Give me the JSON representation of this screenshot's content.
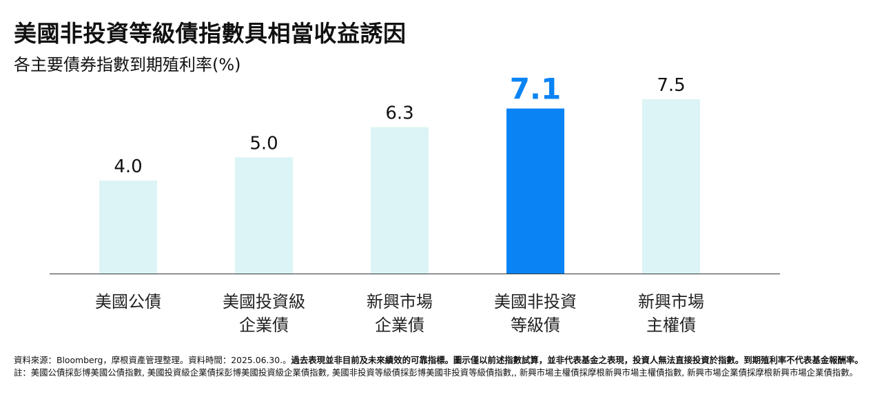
{
  "title": "美國非投資等級債指數具相當收益誘因",
  "subtitle": "各主要債券指數到期殖利率(%)",
  "colors": {
    "highlight_bar": "#0a84f5",
    "normal_bar": "#dcf4f5",
    "highlight_label": "#0a84f5",
    "normal_label": "#111111",
    "axis": "#333333"
  },
  "chart_data": {
    "type": "bar",
    "title": "美國非投資等級債指數具相當收益誘因",
    "subtitle": "各主要債券指數到期殖利率(%)",
    "categories": [
      [
        "美國公債"
      ],
      [
        "美國投資級",
        "企業債"
      ],
      [
        "新興市場",
        "企業債"
      ],
      [
        "美國非投資",
        "等級債"
      ],
      [
        "新興市場",
        "主權債"
      ]
    ],
    "values": [
      4.0,
      5.0,
      6.3,
      7.1,
      7.5
    ],
    "value_labels": [
      "4.0",
      "5.0",
      "6.3",
      "7.1",
      "7.5"
    ],
    "highlight_index": 3,
    "ylim": [
      0,
      7.5
    ],
    "grid": false,
    "legend": "none"
  },
  "footnote": {
    "source": "資料來源：Bloomberg，摩根資產管理整理。資料時間：2025.06.30.。",
    "disclaimer_bold": "過去表現並非目前及未來績效的可靠指標。圖示僅以前述指數試算，並非代表基金之表現，投資人無法直接投資於指數。到期殖利率不代表基金報酬率。",
    "note": "註：美國公債採彭博美國公債指數, 美國投資級企業債採彭博美國投資級企業債指數, 美國非投資等級債採彭博美國非投資等級債指數,, 新興市場主權債採摩根新興市場主權債指數, 新興市場企業債採摩根新興市場企業債指數。"
  }
}
